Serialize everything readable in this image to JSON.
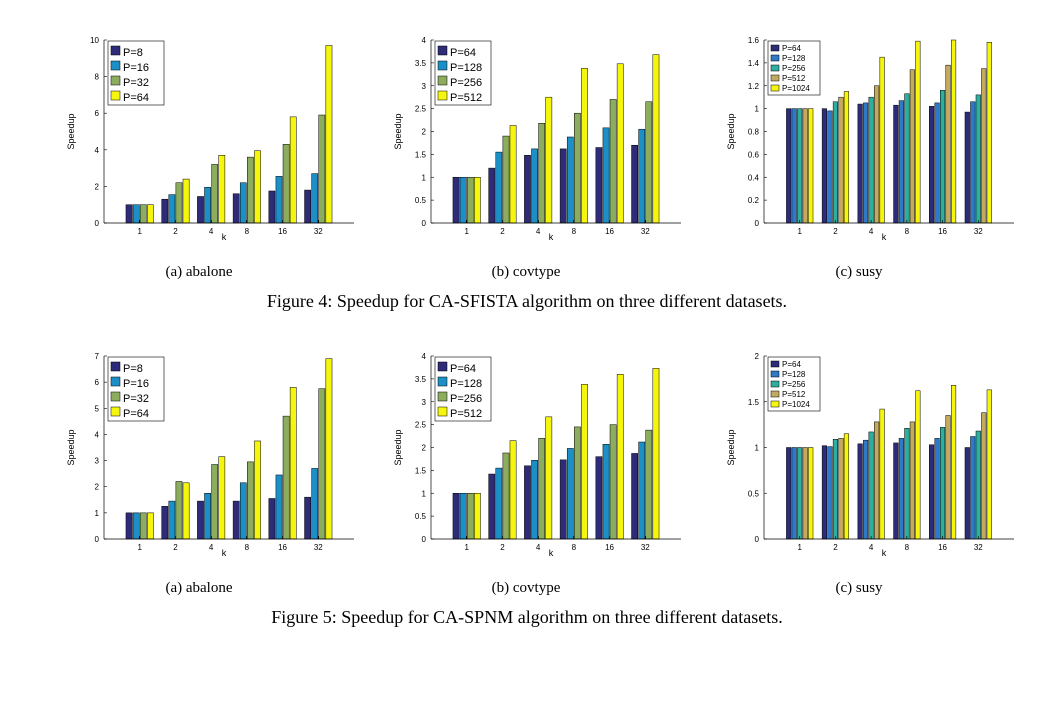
{
  "figures": [
    {
      "caption": "Figure 4: Speedup for CA-SFISTA algorithm on three different datasets.",
      "panels": [
        {
          "caption": "(a) abalone"
        },
        {
          "caption": "(b) covtype"
        },
        {
          "caption": "(c) susy"
        }
      ]
    },
    {
      "caption": "Figure 5: Speedup for CA-SPNM algorithm on three different datasets.",
      "panels": [
        {
          "caption": "(a) abalone"
        },
        {
          "caption": "(b) covtype"
        },
        {
          "caption": "(c) susy"
        }
      ]
    }
  ],
  "series_colors": [
    "#2e2b78",
    "#1b8fc6",
    "#8cac5e",
    "#f5f50e"
  ],
  "series_colors_5": [
    "#2e2b78",
    "#2f79c7",
    "#2dae9f",
    "#c2aa60",
    "#f5f50e"
  ],
  "chart_data": [
    {
      "type": "bar",
      "xlabel": "k",
      "ylabel": "Speedup",
      "categories": [
        "1",
        "2",
        "4",
        "8",
        "16",
        "32"
      ],
      "ylim": [
        0,
        10
      ],
      "yticks": [
        "0",
        "2",
        "4",
        "6",
        "8",
        "10"
      ],
      "legend_position": "top-left",
      "series": [
        {
          "name": "P=8",
          "values": [
            1.0,
            1.3,
            1.45,
            1.6,
            1.75,
            1.8
          ]
        },
        {
          "name": "P=16",
          "values": [
            1.0,
            1.55,
            1.95,
            2.2,
            2.55,
            2.7
          ]
        },
        {
          "name": "P=32",
          "values": [
            1.0,
            2.2,
            3.2,
            3.6,
            4.3,
            5.9
          ]
        },
        {
          "name": "P=64",
          "values": [
            1.0,
            2.4,
            3.7,
            3.95,
            5.8,
            9.7
          ]
        }
      ]
    },
    {
      "type": "bar",
      "xlabel": "k",
      "ylabel": "Speedup",
      "categories": [
        "1",
        "2",
        "4",
        "8",
        "16",
        "32"
      ],
      "ylim": [
        0,
        4
      ],
      "yticks": [
        "0",
        "0.5",
        "1",
        "1.5",
        "2",
        "2.5",
        "3",
        "3.5",
        "4"
      ],
      "legend_position": "top-left",
      "series": [
        {
          "name": "P=64",
          "values": [
            1.0,
            1.2,
            1.48,
            1.62,
            1.65,
            1.7
          ]
        },
        {
          "name": "P=128",
          "values": [
            1.0,
            1.55,
            1.62,
            1.88,
            2.08,
            2.05
          ]
        },
        {
          "name": "P=256",
          "values": [
            1.0,
            1.9,
            2.18,
            2.4,
            2.7,
            2.65
          ]
        },
        {
          "name": "P=512",
          "values": [
            1.0,
            2.13,
            2.75,
            3.38,
            3.48,
            3.68
          ]
        }
      ]
    },
    {
      "type": "bar",
      "xlabel": "k",
      "ylabel": "Speedup",
      "categories": [
        "1",
        "2",
        "4",
        "8",
        "16",
        "32"
      ],
      "ylim": [
        0,
        1.6
      ],
      "yticks": [
        "0",
        "0.2",
        "0.4",
        "0.6",
        "0.8",
        "1",
        "1.2",
        "1.4",
        "1.6"
      ],
      "legend_position": "top-left",
      "series": [
        {
          "name": "P=64",
          "values": [
            1.0,
            1.0,
            1.04,
            1.03,
            1.02,
            0.97
          ]
        },
        {
          "name": "P=128",
          "values": [
            1.0,
            0.98,
            1.05,
            1.07,
            1.05,
            1.06
          ]
        },
        {
          "name": "P=256",
          "values": [
            1.0,
            1.06,
            1.1,
            1.13,
            1.16,
            1.12
          ]
        },
        {
          "name": "P=512",
          "values": [
            1.0,
            1.1,
            1.2,
            1.34,
            1.38,
            1.35
          ]
        },
        {
          "name": "P=1024",
          "values": [
            1.0,
            1.15,
            1.45,
            1.59,
            1.6,
            1.58
          ]
        }
      ]
    },
    {
      "type": "bar",
      "xlabel": "k",
      "ylabel": "Speedup",
      "categories": [
        "1",
        "2",
        "4",
        "8",
        "16",
        "32"
      ],
      "ylim": [
        0,
        7
      ],
      "yticks": [
        "0",
        "1",
        "2",
        "3",
        "4",
        "5",
        "6",
        "7"
      ],
      "legend_position": "top-left",
      "series": [
        {
          "name": "P=8",
          "values": [
            1.0,
            1.25,
            1.45,
            1.45,
            1.55,
            1.6
          ]
        },
        {
          "name": "P=16",
          "values": [
            1.0,
            1.45,
            1.75,
            2.15,
            2.45,
            2.7
          ]
        },
        {
          "name": "P=32",
          "values": [
            1.0,
            2.2,
            2.85,
            2.95,
            4.7,
            5.75
          ]
        },
        {
          "name": "P=64",
          "values": [
            1.0,
            2.15,
            3.15,
            3.75,
            5.8,
            6.9
          ]
        }
      ]
    },
    {
      "type": "bar",
      "xlabel": "k",
      "ylabel": "Speedup",
      "categories": [
        "1",
        "2",
        "4",
        "8",
        "16",
        "32"
      ],
      "ylim": [
        0,
        4
      ],
      "yticks": [
        "0",
        "0.5",
        "1",
        "1.5",
        "2",
        "2.5",
        "3",
        "3.5",
        "4"
      ],
      "legend_position": "top-left",
      "series": [
        {
          "name": "P=64",
          "values": [
            1.0,
            1.42,
            1.6,
            1.73,
            1.8,
            1.87
          ]
        },
        {
          "name": "P=128",
          "values": [
            1.0,
            1.55,
            1.72,
            1.98,
            2.07,
            2.12
          ]
        },
        {
          "name": "P=256",
          "values": [
            1.0,
            1.88,
            2.2,
            2.45,
            2.5,
            2.38
          ]
        },
        {
          "name": "P=512",
          "values": [
            1.0,
            2.15,
            2.67,
            3.38,
            3.6,
            3.73
          ]
        }
      ]
    },
    {
      "type": "bar",
      "xlabel": "k",
      "ylabel": "Speedup",
      "categories": [
        "1",
        "2",
        "4",
        "8",
        "16",
        "32"
      ],
      "ylim": [
        0,
        2
      ],
      "yticks": [
        "0",
        "0.5",
        "1",
        "1.5",
        "2"
      ],
      "legend_position": "top-left",
      "series": [
        {
          "name": "P=64",
          "values": [
            1.0,
            1.02,
            1.04,
            1.05,
            1.03,
            1.0
          ]
        },
        {
          "name": "P=128",
          "values": [
            1.0,
            1.01,
            1.08,
            1.1,
            1.1,
            1.12
          ]
        },
        {
          "name": "P=256",
          "values": [
            1.0,
            1.09,
            1.17,
            1.21,
            1.22,
            1.18
          ]
        },
        {
          "name": "P=512",
          "values": [
            1.0,
            1.1,
            1.28,
            1.28,
            1.35,
            1.38
          ]
        },
        {
          "name": "P=1024",
          "values": [
            1.0,
            1.15,
            1.42,
            1.62,
            1.68,
            1.63
          ]
        }
      ]
    }
  ]
}
